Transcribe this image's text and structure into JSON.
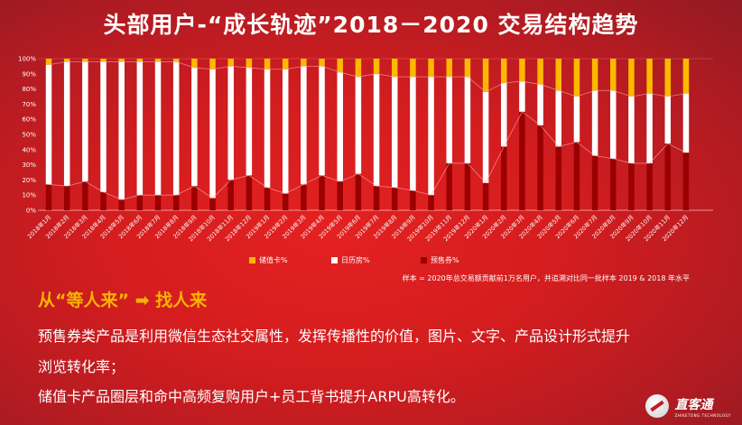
{
  "title": "头部用户-“成长轨迹”2018－2020 交易结构趋势",
  "chart_data": {
    "type": "bar",
    "stacked": true,
    "percent_stacked": true,
    "categories": [
      "2018年1月",
      "2018年2月",
      "2018年3月",
      "2018年4月",
      "2018年5月",
      "2018年6月",
      "2018年7月",
      "2018年8月",
      "2018年9月",
      "2018年10月",
      "2018年11月",
      "2018年12月",
      "2019年1月",
      "2019年2月",
      "2019年3月",
      "2019年4月",
      "2019年5月",
      "2019年6月",
      "2019年7月",
      "2019年8月",
      "2019年9月",
      "2019年10月",
      "2019年11月",
      "2019年12月",
      "2020年1月",
      "2020年2月",
      "2020年3月",
      "2020年4月",
      "2020年5月",
      "2020年6月",
      "2020年7月",
      "2020年8月",
      "2020年9月",
      "2020年10月",
      "2020年11月",
      "2020年12月"
    ],
    "series": [
      {
        "name": "预售券%",
        "color": "#9b0000",
        "values": [
          17,
          16,
          19,
          12,
          7,
          10,
          10,
          10,
          16,
          8,
          20,
          23,
          15,
          11,
          17,
          23,
          19,
          24,
          16,
          15,
          13,
          10,
          31,
          31,
          18,
          42,
          65,
          56,
          42,
          45,
          36,
          34,
          31,
          31,
          44,
          38
        ]
      },
      {
        "name": "日历房%",
        "color": "#ffffff",
        "values": [
          79,
          82,
          79,
          86,
          91,
          88,
          88,
          88,
          78,
          85,
          75,
          71,
          78,
          82,
          78,
          72,
          72,
          64,
          74,
          73,
          75,
          78,
          57,
          57,
          60,
          42,
          20,
          27,
          37,
          30,
          43,
          45,
          44,
          46,
          31,
          39
        ]
      },
      {
        "name": "储值卡%",
        "color": "#ffb800",
        "values": [
          4,
          2,
          2,
          2,
          2,
          2,
          2,
          2,
          6,
          7,
          5,
          6,
          7,
          7,
          5,
          5,
          9,
          12,
          10,
          12,
          12,
          12,
          12,
          12,
          22,
          16,
          15,
          17,
          21,
          25,
          21,
          21,
          25,
          23,
          25,
          23
        ]
      }
    ],
    "legend_order": [
      "储值卡%",
      "日历房%",
      "预售券%"
    ],
    "legend_position": "bottom",
    "y_ticks": [
      "0%",
      "10%",
      "20%",
      "30%",
      "40%",
      "50%",
      "60%",
      "70%",
      "80%",
      "90%",
      "100%"
    ],
    "ylim": [
      0,
      100
    ],
    "grid": false,
    "note": "样本 = 2020年总交易额贡献前1万名用户，并追溯对比同一批样本 2019 & 2018 年水平"
  },
  "heading": "从“等人来” ➡ 找人来",
  "body": [
    "预售券类产品是利用微信生态社交属性，发挥传播性的价值，图片、文字、产品设计形式提升",
    "浏览转化率；",
    "储值卡产品圈层和命中高频复购用户+员工背书提升ARPU高转化。"
  ],
  "logo": {
    "text": "直客通",
    "sub": "ZHIKETONG TECHNOLOGY"
  }
}
